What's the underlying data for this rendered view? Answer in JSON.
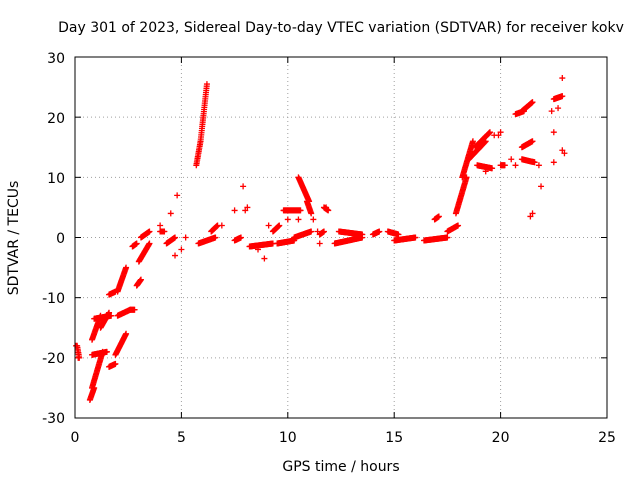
{
  "chart_data": {
    "type": "scatter",
    "title": "Day 301 of 2023, Sidereal Day-to-day VTEC variation (SDTVAR) for receiver kokv",
    "xlabel": "GPS time / hours",
    "ylabel": "SDTVAR / TECUs",
    "xlim": [
      0,
      25
    ],
    "ylim": [
      -30,
      30
    ],
    "xticks": [
      0,
      5,
      10,
      15,
      20,
      25
    ],
    "yticks": [
      -30,
      -20,
      -10,
      0,
      10,
      20,
      30
    ],
    "xtick_labels": [
      "0",
      "5",
      "10",
      "15",
      "20",
      "25"
    ],
    "ytick_labels": [
      "-30",
      "-20",
      "-10",
      "0",
      "10",
      "20",
      "30"
    ],
    "grid": true,
    "marker": "+",
    "series": [
      {
        "name": "kokv",
        "color": "#ff0000",
        "segments": [
          {
            "x0": 0.1,
            "x1": 0.2,
            "y0": -18,
            "y1": -20
          },
          {
            "x0": 0.7,
            "x1": 0.9,
            "y0": -27,
            "y1": -25
          },
          {
            "x0": 0.8,
            "x1": 1.3,
            "y0": -25,
            "y1": -19
          },
          {
            "x0": 0.8,
            "x1": 1.5,
            "y0": -19.5,
            "y1": -19
          },
          {
            "x0": 0.8,
            "x1": 1.2,
            "y0": -17,
            "y1": -13
          },
          {
            "x0": 0.9,
            "x1": 1.7,
            "y0": -13.5,
            "y1": -13
          },
          {
            "x0": 1.2,
            "x1": 1.6,
            "y0": -15,
            "y1": -12.5
          },
          {
            "x0": 1.6,
            "x1": 1.9,
            "y0": -21.5,
            "y1": -21
          },
          {
            "x0": 1.6,
            "x1": 1.9,
            "y0": -9.5,
            "y1": -9
          },
          {
            "x0": 1.9,
            "x1": 2.4,
            "y0": -19.5,
            "y1": -16
          },
          {
            "x0": 2.0,
            "x1": 2.6,
            "y0": -13,
            "y1": -12
          },
          {
            "x0": 2.0,
            "x1": 2.4,
            "y0": -9,
            "y1": -5
          },
          {
            "x0": 2.6,
            "x1": 2.8,
            "y0": -12,
            "y1": -12
          },
          {
            "x0": 2.7,
            "x1": 2.9,
            "y0": -1.5,
            "y1": -1
          },
          {
            "x0": 2.9,
            "x1": 3.1,
            "y0": -8,
            "y1": -7
          },
          {
            "x0": 3.0,
            "x1": 3.5,
            "y0": -4,
            "y1": -1
          },
          {
            "x0": 3.1,
            "x1": 3.5,
            "y0": 0,
            "y1": 1
          },
          {
            "x0": 4.0,
            "x1": 4.2,
            "y0": 1,
            "y1": 1
          },
          {
            "x0": 4.3,
            "x1": 4.7,
            "y0": -1,
            "y1": 0
          },
          {
            "x0": 5.7,
            "x1": 5.9,
            "y0": 12,
            "y1": 16
          },
          {
            "x0": 5.9,
            "x1": 6.2,
            "y0": 16,
            "y1": 25.5
          },
          {
            "x0": 5.8,
            "x1": 6.6,
            "y0": -1,
            "y1": 0
          },
          {
            "x0": 6.4,
            "x1": 6.7,
            "y0": 1,
            "y1": 2
          },
          {
            "x0": 7.5,
            "x1": 7.8,
            "y0": -0.5,
            "y1": 0
          },
          {
            "x0": 8.2,
            "x1": 9.3,
            "y0": -1.5,
            "y1": -1
          },
          {
            "x0": 9.3,
            "x1": 9.6,
            "y0": 1,
            "y1": 2
          },
          {
            "x0": 9.5,
            "x1": 10.3,
            "y0": -1,
            "y1": -0.5
          },
          {
            "x0": 9.8,
            "x1": 10.6,
            "y0": 4.5,
            "y1": 4.5
          },
          {
            "x0": 10.5,
            "x1": 11.0,
            "y0": 10,
            "y1": 6
          },
          {
            "x0": 10.9,
            "x1": 11.1,
            "y0": 6,
            "y1": 4
          },
          {
            "x0": 10.3,
            "x1": 11.1,
            "y0": 0,
            "y1": 1
          },
          {
            "x0": 11.5,
            "x1": 11.7,
            "y0": 0.5,
            "y1": 1
          },
          {
            "x0": 11.7,
            "x1": 11.9,
            "y0": 5,
            "y1": 4.5
          },
          {
            "x0": 12.2,
            "x1": 13.5,
            "y0": -1,
            "y1": 0
          },
          {
            "x0": 12.4,
            "x1": 13.5,
            "y0": 1,
            "y1": 0.5
          },
          {
            "x0": 14.0,
            "x1": 14.3,
            "y0": 0.5,
            "y1": 1
          },
          {
            "x0": 14.7,
            "x1": 15.2,
            "y0": 1,
            "y1": 0.5
          },
          {
            "x0": 15.0,
            "x1": 16.0,
            "y0": -0.5,
            "y1": 0
          },
          {
            "x0": 16.4,
            "x1": 17.5,
            "y0": -0.5,
            "y1": 0
          },
          {
            "x0": 16.9,
            "x1": 17.1,
            "y0": 3,
            "y1": 3.5
          },
          {
            "x0": 17.5,
            "x1": 18.0,
            "y0": 1,
            "y1": 2
          },
          {
            "x0": 17.9,
            "x1": 18.4,
            "y0": 4,
            "y1": 10
          },
          {
            "x0": 18.2,
            "x1": 18.7,
            "y0": 10,
            "y1": 16
          },
          {
            "x0": 18.5,
            "x1": 19.3,
            "y0": 13,
            "y1": 16
          },
          {
            "x0": 18.8,
            "x1": 19.5,
            "y0": 15,
            "y1": 17.5
          },
          {
            "x0": 18.9,
            "x1": 19.6,
            "y0": 12,
            "y1": 11.5
          },
          {
            "x0": 20.0,
            "x1": 20.2,
            "y0": 12,
            "y1": 12
          },
          {
            "x0": 20.7,
            "x1": 21.1,
            "y0": 20.5,
            "y1": 21
          },
          {
            "x0": 21.0,
            "x1": 21.5,
            "y0": 21,
            "y1": 22.5
          },
          {
            "x0": 21.0,
            "x1": 21.5,
            "y0": 15,
            "y1": 16
          },
          {
            "x0": 21.0,
            "x1": 21.6,
            "y0": 13,
            "y1": 12.5
          },
          {
            "x0": 22.5,
            "x1": 22.9,
            "y0": 23,
            "y1": 23.5
          }
        ],
        "points": [
          [
            0.05,
            -18
          ],
          [
            0.15,
            -20
          ],
          [
            4.0,
            2
          ],
          [
            4.5,
            4
          ],
          [
            4.8,
            7
          ],
          [
            4.7,
            -3
          ],
          [
            5.0,
            -2
          ],
          [
            5.2,
            0
          ],
          [
            6.9,
            2
          ],
          [
            7.5,
            4.5
          ],
          [
            7.9,
            8.5
          ],
          [
            8.1,
            5
          ],
          [
            8.0,
            4.5
          ],
          [
            8.6,
            -2
          ],
          [
            8.9,
            -3.5
          ],
          [
            9.1,
            2
          ],
          [
            10.0,
            3
          ],
          [
            10.5,
            3
          ],
          [
            11.2,
            3
          ],
          [
            11.4,
            1
          ],
          [
            11.5,
            -1
          ],
          [
            11.8,
            5
          ],
          [
            19.3,
            11
          ],
          [
            19.7,
            17
          ],
          [
            19.9,
            17
          ],
          [
            20.0,
            17.5
          ],
          [
            20.5,
            13
          ],
          [
            20.7,
            12
          ],
          [
            21.5,
            4
          ],
          [
            21.4,
            3.5
          ],
          [
            21.8,
            12
          ],
          [
            21.9,
            8.5
          ],
          [
            22.4,
            21
          ],
          [
            22.5,
            17.5
          ],
          [
            22.5,
            12.5
          ],
          [
            22.7,
            21.5
          ],
          [
            22.9,
            26.5
          ],
          [
            22.9,
            14.5
          ],
          [
            23.0,
            14
          ]
        ]
      }
    ]
  }
}
